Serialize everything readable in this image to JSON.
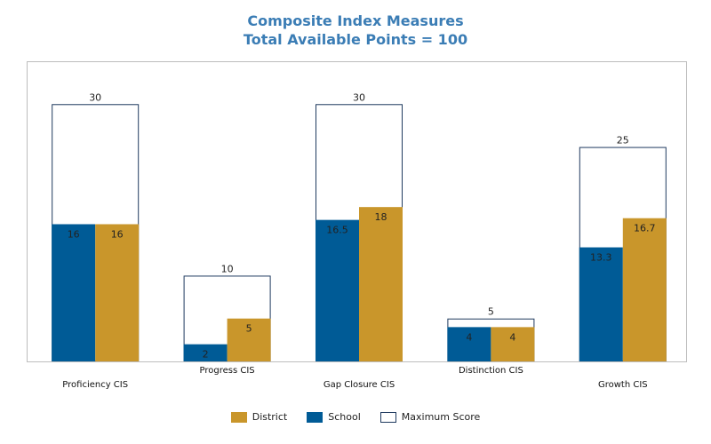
{
  "title": "Composite Index Measures",
  "subtitle": "Total Available Points = 100",
  "colors": {
    "district": "#c9962b",
    "school": "#005b96",
    "maximum": "#ffffff",
    "max_border": "#1f3a5f",
    "title": "#3b7db5"
  },
  "chart_data": {
    "type": "bar",
    "title": "Composite Index Measures",
    "subtitle": "Total Available Points = 100",
    "categories": [
      "Proficiency CIS",
      "Progress CIS",
      "Gap Closure CIS",
      "Distinction CIS",
      "Growth CIS"
    ],
    "series": [
      {
        "name": "Maximum Score",
        "values": [
          30,
          10,
          30,
          5,
          25
        ]
      },
      {
        "name": "School",
        "values": [
          16,
          2,
          16.5,
          4,
          13.3
        ]
      },
      {
        "name": "District",
        "values": [
          16,
          5,
          18,
          4,
          16.7
        ]
      }
    ],
    "ylim": [
      0,
      35
    ],
    "grid": false,
    "legend_position": "bottom",
    "legend": [
      "District",
      "School",
      "Maximum Score"
    ]
  }
}
